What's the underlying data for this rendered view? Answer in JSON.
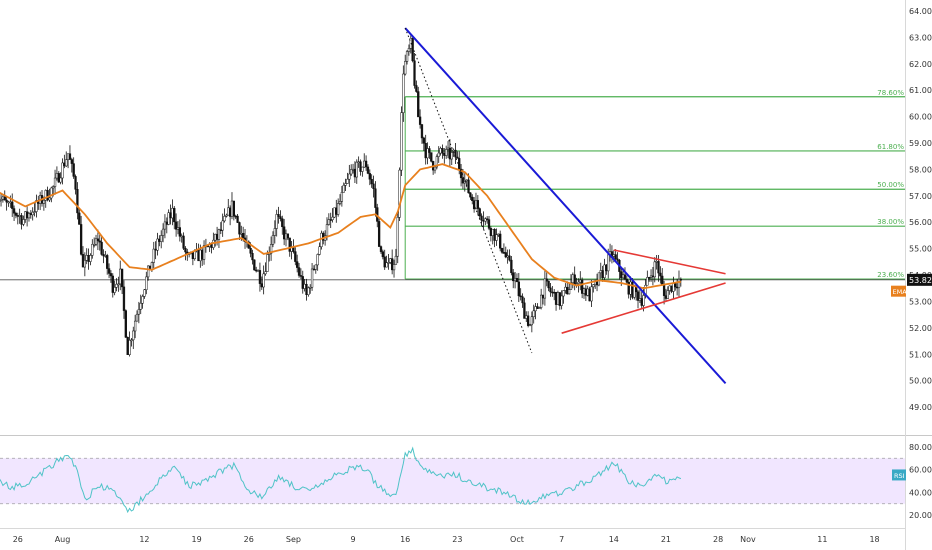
{
  "chart_data": [
    {
      "type": "candlestick",
      "x_ticks": [
        {
          "day": -6,
          "label": "26"
        },
        {
          "day": 0,
          "label": "Aug"
        },
        {
          "day": 11,
          "label": "12"
        },
        {
          "day": 18,
          "label": "19"
        },
        {
          "day": 25,
          "label": "26"
        },
        {
          "day": 31,
          "label": "Sep"
        },
        {
          "day": 39,
          "label": "9"
        },
        {
          "day": 46,
          "label": "16"
        },
        {
          "day": 53,
          "label": "23"
        },
        {
          "day": 61,
          "label": "Oct"
        },
        {
          "day": 67,
          "label": "7"
        },
        {
          "day": 74,
          "label": "14"
        },
        {
          "day": 81,
          "label": "21"
        },
        {
          "day": 88,
          "label": "28"
        },
        {
          "day": 92,
          "label": "Nov"
        },
        {
          "day": 102,
          "label": "11"
        },
        {
          "day": 109,
          "label": "18"
        }
      ],
      "y_ticks": [
        "49.00",
        "50.00",
        "51.00",
        "52.00",
        "53.00",
        "54.00",
        "55.00",
        "56.00",
        "57.00",
        "58.00",
        "59.00",
        "60.00",
        "61.00",
        "62.00",
        "63.00",
        "64.00"
      ],
      "ylim": [
        48.4,
        64.3
      ],
      "last_price": "53.82",
      "ema_label": "EMA",
      "colors": {
        "up": "#ffffff",
        "down": "#111111",
        "ema": "#e8801e",
        "fib": "#4caf50",
        "trend": "#1a1ad6",
        "triangle": "#e53935",
        "price_tag": "#111111"
      },
      "fib_levels": [
        {
          "label": "23.60%",
          "value": 53.85
        },
        {
          "label": "38.00%",
          "value": 55.85
        },
        {
          "label": "50.00%",
          "value": 57.25
        },
        {
          "label": "61.80%",
          "value": 58.7
        },
        {
          "label": "78.60%",
          "value": 60.75
        }
      ],
      "anchors": [
        [
          -9,
          57.1
        ],
        [
          -5,
          56.1
        ],
        [
          -1,
          57.3
        ],
        [
          1,
          58.6
        ],
        [
          2,
          57.4
        ],
        [
          3,
          54.2
        ],
        [
          5,
          55.4
        ],
        [
          7,
          53.6
        ],
        [
          8,
          54.0
        ],
        [
          9,
          51.2
        ],
        [
          11,
          53.4
        ],
        [
          13,
          55.2
        ],
        [
          15,
          56.4
        ],
        [
          17,
          54.6
        ],
        [
          19,
          54.8
        ],
        [
          21,
          55.4
        ],
        [
          23,
          56.6
        ],
        [
          25,
          55.0
        ],
        [
          27,
          53.8
        ],
        [
          29,
          56.2
        ],
        [
          31,
          54.9
        ],
        [
          33,
          53.2
        ],
        [
          35,
          55.4
        ],
        [
          37,
          56.4
        ],
        [
          39,
          57.9
        ],
        [
          41,
          58.2
        ],
        [
          42,
          57.2
        ],
        [
          43,
          54.7
        ],
        [
          44,
          54.3
        ],
        [
          45,
          54.6
        ],
        [
          46,
          61.8
        ],
        [
          47,
          62.7
        ],
        [
          48,
          60.0
        ],
        [
          49,
          58.7
        ],
        [
          50,
          58.2
        ],
        [
          51,
          58.6
        ],
        [
          53,
          58.5
        ],
        [
          55,
          57.0
        ],
        [
          57,
          56.1
        ],
        [
          59,
          55.2
        ],
        [
          61,
          53.8
        ],
        [
          62,
          52.8
        ],
        [
          63,
          52.1
        ],
        [
          64,
          52.8
        ],
        [
          65,
          53.6
        ],
        [
          67,
          53.0
        ],
        [
          69,
          53.9
        ],
        [
          71,
          53.2
        ],
        [
          72,
          53.7
        ],
        [
          74,
          54.8
        ],
        [
          76,
          53.6
        ],
        [
          78,
          53.1
        ],
        [
          79,
          53.9
        ],
        [
          80,
          54.5
        ],
        [
          81,
          53.2
        ],
        [
          82,
          53.6
        ],
        [
          83,
          53.82
        ]
      ],
      "ema_points": [
        [
          -9,
          57.2
        ],
        [
          -5,
          56.6
        ],
        [
          0,
          57.2
        ],
        [
          3,
          56.3
        ],
        [
          6,
          55.2
        ],
        [
          9,
          54.3
        ],
        [
          12,
          54.2
        ],
        [
          16,
          54.7
        ],
        [
          20,
          55.2
        ],
        [
          24,
          55.4
        ],
        [
          27,
          54.8
        ],
        [
          30,
          55.0
        ],
        [
          33,
          55.2
        ],
        [
          37,
          55.6
        ],
        [
          40,
          56.2
        ],
        [
          42,
          56.3
        ],
        [
          44,
          55.8
        ],
        [
          45,
          56.4
        ],
        [
          46,
          57.4
        ],
        [
          48,
          58.0
        ],
        [
          51,
          58.2
        ],
        [
          54,
          57.9
        ],
        [
          57,
          57.0
        ],
        [
          60,
          55.8
        ],
        [
          63,
          54.6
        ],
        [
          66,
          53.9
        ],
        [
          69,
          53.6
        ],
        [
          72,
          53.8
        ],
        [
          75,
          53.7
        ],
        [
          78,
          53.5
        ],
        [
          80,
          53.6
        ],
        [
          83,
          53.75
        ]
      ],
      "trend_lines": [
        {
          "from": [
            46,
            63.35
          ],
          "to": [
            89,
            49.9
          ],
          "style": "trend"
        },
        {
          "from": [
            46,
            63.35
          ],
          "to": [
            63,
            51.05
          ],
          "style": "dotted"
        },
        {
          "from": [
            74,
            54.95
          ],
          "to": [
            89,
            54.05
          ],
          "style": "triangle"
        },
        {
          "from": [
            67,
            51.8
          ],
          "to": [
            89,
            53.7
          ],
          "style": "triangle"
        }
      ]
    },
    {
      "type": "line",
      "name": "RSI",
      "y_ticks": [
        "20.00",
        "40.00",
        "60.00",
        "80.00"
      ],
      "ylim": [
        14,
        86
      ],
      "band": [
        30,
        70
      ],
      "colors": {
        "line": "#4fc3c7",
        "band": "#f1e6ff",
        "band_border": "#a0a0a0",
        "tag": "#3aa9c5"
      },
      "points": [
        [
          -9,
          52
        ],
        [
          -7,
          44
        ],
        [
          -5,
          48
        ],
        [
          -3,
          56
        ],
        [
          -1,
          66
        ],
        [
          1,
          72
        ],
        [
          2,
          58
        ],
        [
          3,
          34
        ],
        [
          5,
          46
        ],
        [
          7,
          40
        ],
        [
          8,
          30
        ],
        [
          9,
          24
        ],
        [
          10,
          30
        ],
        [
          11,
          36
        ],
        [
          13,
          50
        ],
        [
          15,
          62
        ],
        [
          17,
          46
        ],
        [
          19,
          50
        ],
        [
          21,
          58
        ],
        [
          23,
          64
        ],
        [
          25,
          42
        ],
        [
          27,
          36
        ],
        [
          29,
          54
        ],
        [
          31,
          46
        ],
        [
          33,
          40
        ],
        [
          35,
          48
        ],
        [
          37,
          56
        ],
        [
          39,
          62
        ],
        [
          41,
          60
        ],
        [
          42,
          48
        ],
        [
          44,
          38
        ],
        [
          45,
          42
        ],
        [
          46,
          74
        ],
        [
          47,
          76
        ],
        [
          48,
          66
        ],
        [
          49,
          58
        ],
        [
          51,
          54
        ],
        [
          53,
          55
        ],
        [
          55,
          48
        ],
        [
          57,
          44
        ],
        [
          59,
          40
        ],
        [
          61,
          34
        ],
        [
          62,
          32
        ],
        [
          63,
          30
        ],
        [
          65,
          38
        ],
        [
          67,
          40
        ],
        [
          69,
          46
        ],
        [
          71,
          52
        ],
        [
          72,
          56
        ],
        [
          74,
          66
        ],
        [
          75,
          58
        ],
        [
          76,
          50
        ],
        [
          78,
          44
        ],
        [
          80,
          58
        ],
        [
          81,
          48
        ],
        [
          82,
          52
        ],
        [
          83,
          54
        ]
      ]
    }
  ]
}
